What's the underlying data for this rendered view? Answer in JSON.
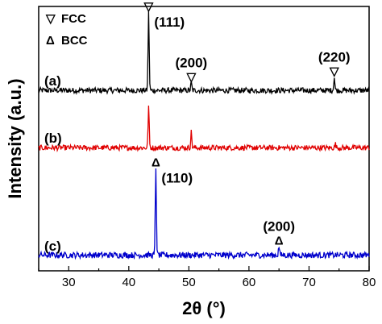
{
  "chart_data": {
    "type": "line",
    "xlabel": "2θ (°)",
    "ylabel": "Intensity (a.u.)",
    "xlim": [
      25,
      80
    ],
    "xticks": [
      30,
      40,
      50,
      60,
      70,
      80
    ],
    "legend": [
      {
        "symbol": "▽",
        "label": "FCC"
      },
      {
        "symbol": "Δ",
        "label": "BCC"
      }
    ],
    "series": [
      {
        "label": "(a)",
        "color": "#000000",
        "baseline": 0.06,
        "noise": 0.07,
        "peaks": [
          {
            "x": 43.3,
            "h": 1.0
          },
          {
            "x": 50.4,
            "h": 0.1
          },
          {
            "x": 74.2,
            "h": 0.17
          }
        ],
        "annotations": [
          {
            "x": 43.3,
            "marker": "▽",
            "label": "(111)"
          },
          {
            "x": 50.4,
            "marker": "▽",
            "label": "(200)"
          },
          {
            "x": 74.2,
            "marker": "▽",
            "label": "(220)"
          }
        ]
      },
      {
        "label": "(b)",
        "color": "#e00000",
        "baseline": 0.06,
        "noise": 0.07,
        "peaks": [
          {
            "x": 43.3,
            "h": 0.55
          },
          {
            "x": 50.4,
            "h": 0.21
          },
          {
            "x": 74.4,
            "h": 0.05
          }
        ],
        "annotations": []
      },
      {
        "label": "(c)",
        "color": "#0000cc",
        "baseline": 0.06,
        "noise": 0.07,
        "peaks": [
          {
            "x": 44.5,
            "h": 1.0
          },
          {
            "x": 65.0,
            "h": 0.1
          }
        ],
        "annotations": [
          {
            "x": 44.5,
            "marker": "Δ",
            "label": "(110)"
          },
          {
            "x": 65.0,
            "marker": "Δ",
            "label": "(200)"
          }
        ]
      }
    ]
  }
}
